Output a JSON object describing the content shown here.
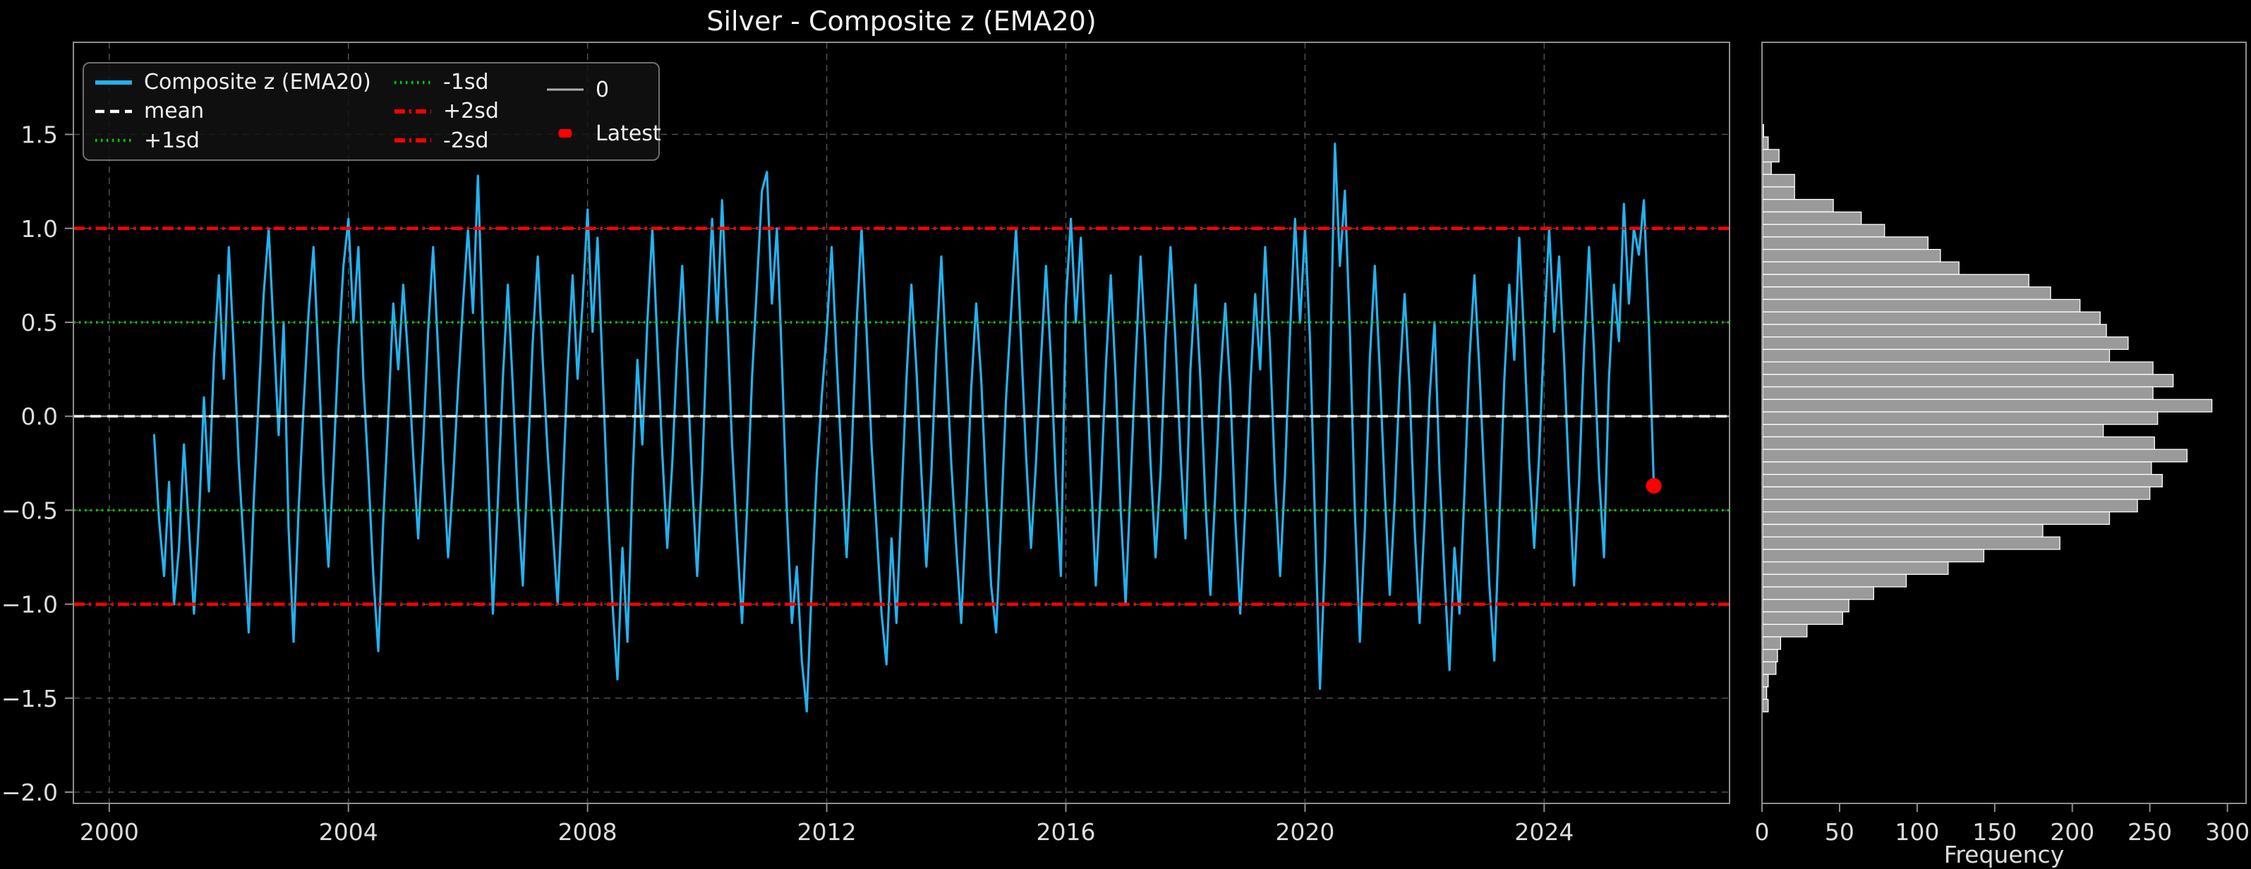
{
  "title": "Silver - Composite z (EMA20)",
  "colors": {
    "background": "#000000",
    "series_line": "#23b2ef",
    "mean_line": "#ffffff",
    "sd1_line": "#00c800",
    "sd2_line": "#ff0000",
    "zero_line": "#b0b0b0",
    "latest_marker": "#ff0000",
    "hist_bar": "#9a9a9a",
    "hist_bar_edge": "#ffffff",
    "grid": "#4f4f4f",
    "spine": "#8f8f8f",
    "text": "#dcdcdc"
  },
  "legend": {
    "entries": [
      {
        "label": "Composite z (EMA20)",
        "style": "solid",
        "color": "#23b2ef",
        "sample_width": 6
      },
      {
        "label": "mean",
        "style": "dashed",
        "color": "#ffffff",
        "sample_width": 4.5
      },
      {
        "label": "+1sd",
        "style": "dotted",
        "color": "#00c800",
        "sample_width": 4.5
      },
      {
        "label": "-1sd",
        "style": "dotted",
        "color": "#00c800",
        "sample_width": 4.5
      },
      {
        "label": "+2sd",
        "style": "dashdot",
        "color": "#ff0000",
        "sample_width": 6
      },
      {
        "label": "-2sd",
        "style": "dashdot",
        "color": "#ff0000",
        "sample_width": 6
      },
      {
        "label": "0",
        "style": "solid",
        "color": "#b0b0b0",
        "sample_width": 3
      },
      {
        "label": "Latest",
        "style": "marker",
        "color": "#ff0000",
        "sample_width": 0
      }
    ]
  },
  "chart_data": [
    {
      "type": "line",
      "title": "Silver - Composite z (EMA20)",
      "xlabel": "",
      "ylabel": "",
      "xlim": [
        1999.4,
        2027.1
      ],
      "ylim": [
        -2.06,
        1.99
      ],
      "xticks": [
        2000,
        2004,
        2008,
        2012,
        2016,
        2020,
        2024
      ],
      "yticks": [
        1.5,
        1.0,
        0.5,
        0.0,
        -0.5,
        -1.0,
        -1.5,
        -2.0
      ],
      "grid": true,
      "legend_position": "upper left",
      "series": [
        {
          "name": "Composite z (EMA20)",
          "color": "#23b2ef",
          "x_start": 2000.75,
          "x_step": 0.0833333,
          "y": [
            -0.1,
            -0.55,
            -0.85,
            -0.35,
            -1.0,
            -0.7,
            -0.15,
            -0.6,
            -1.05,
            -0.55,
            0.1,
            -0.4,
            0.3,
            0.75,
            0.2,
            0.9,
            0.35,
            -0.25,
            -0.7,
            -1.15,
            -0.45,
            0.1,
            0.65,
            1.0,
            0.45,
            -0.1,
            0.5,
            -0.6,
            -1.2,
            -0.5,
            0.05,
            0.55,
            0.9,
            0.3,
            -0.35,
            -0.8,
            -0.25,
            0.35,
            0.8,
            1.05,
            0.5,
            0.9,
            0.2,
            -0.3,
            -0.85,
            -1.25,
            -0.55,
            0.0,
            0.6,
            0.25,
            0.7,
            0.3,
            -0.2,
            -0.65,
            -0.15,
            0.45,
            0.9,
            0.35,
            -0.25,
            -0.75,
            -0.35,
            0.15,
            0.6,
            1.0,
            0.55,
            1.28,
            0.45,
            -0.3,
            -1.05,
            -0.45,
            0.2,
            0.7,
            0.15,
            -0.45,
            -0.9,
            -0.25,
            0.4,
            0.85,
            0.3,
            -0.2,
            -0.6,
            -1.0,
            -0.4,
            0.25,
            0.75,
            0.2,
            0.6,
            1.1,
            0.45,
            0.95,
            0.25,
            -0.45,
            -1.0,
            -1.4,
            -0.7,
            -1.2,
            -0.35,
            0.3,
            -0.15,
            0.5,
            1.0,
            0.4,
            -0.2,
            -0.7,
            -0.25,
            0.35,
            0.8,
            0.25,
            -0.35,
            -0.85,
            -0.3,
            0.45,
            1.05,
            0.5,
            1.15,
            0.55,
            -0.15,
            -0.65,
            -1.1,
            -0.5,
            0.2,
            0.7,
            1.2,
            1.3,
            0.6,
            1.0,
            0.3,
            -0.5,
            -1.1,
            -0.8,
            -1.3,
            -1.57,
            -0.9,
            -0.3,
            0.1,
            0.45,
            0.9,
            0.3,
            -0.25,
            -0.75,
            -0.2,
            0.5,
            1.0,
            0.45,
            -0.15,
            -0.6,
            -1.05,
            -1.32,
            -0.65,
            -1.1,
            -0.45,
            0.2,
            0.7,
            0.25,
            -0.3,
            -0.8,
            -0.3,
            0.35,
            0.85,
            0.3,
            -0.25,
            -0.7,
            -1.1,
            -0.5,
            0.15,
            0.6,
            0.2,
            -0.4,
            -0.9,
            -1.15,
            -0.55,
            0.1,
            0.55,
            1.0,
            0.4,
            -0.2,
            -0.7,
            -0.25,
            0.3,
            0.8,
            0.3,
            -0.35,
            -0.85,
            0.6,
            1.05,
            0.5,
            0.95,
            0.35,
            -0.3,
            -0.9,
            -0.4,
            0.25,
            0.75,
            0.2,
            -0.5,
            -1.0,
            -0.35,
            0.3,
            0.85,
            0.35,
            -0.25,
            -0.75,
            -0.3,
            0.4,
            0.9,
            0.4,
            -0.2,
            -0.65,
            0.25,
            0.7,
            0.2,
            -0.45,
            -0.95,
            -0.4,
            0.2,
            0.6,
            0.15,
            -0.55,
            -1.05,
            -0.5,
            0.15,
            0.65,
            0.25,
            0.9,
            0.35,
            -0.35,
            -0.85,
            -0.3,
            0.45,
            1.05,
            0.5,
            1.0,
            0.4,
            -0.55,
            -1.45,
            -0.75,
            0.2,
            1.45,
            0.8,
            1.2,
            0.45,
            -0.5,
            -1.2,
            -0.6,
            0.3,
            0.8,
            0.25,
            -0.4,
            -0.95,
            -0.45,
            0.2,
            0.65,
            0.15,
            -0.6,
            -1.1,
            -0.55,
            0.1,
            0.5,
            -0.3,
            -0.85,
            -1.35,
            -0.7,
            -1.05,
            -0.4,
            0.3,
            0.75,
            0.25,
            -0.35,
            -0.9,
            -1.3,
            -0.55,
            0.2,
            0.7,
            0.3,
            0.95,
            0.4,
            -0.25,
            -0.7,
            -0.2,
            0.45,
            1.0,
            0.45,
            0.85,
            0.3,
            -0.35,
            -0.9,
            -0.35,
            0.35,
            0.9,
            0.35,
            -0.3,
            -0.75,
            0.2,
            0.7,
            0.4,
            1.13,
            0.6,
            1.0,
            0.86,
            1.15,
            0.5,
            -0.37
          ]
        }
      ],
      "reference_lines": [
        {
          "name": "0",
          "value": 0.0,
          "style": "solid",
          "color": "#b0b0b0",
          "width": 2.5
        },
        {
          "name": "+1sd",
          "value": 0.5,
          "style": "dotted",
          "color": "#00c800",
          "width": 3.5
        },
        {
          "name": "-1sd",
          "value": -0.5,
          "style": "dotted",
          "color": "#00c800",
          "width": 3.5
        },
        {
          "name": "+2sd",
          "value": 1.0,
          "style": "dashdot",
          "color": "#ff0000",
          "width": 4.5
        },
        {
          "name": "-2sd",
          "value": -1.0,
          "style": "dashdot",
          "color": "#ff0000",
          "width": 4.5
        },
        {
          "name": "mean",
          "value": 0.0,
          "style": "dashed",
          "color": "#ffffff",
          "width": 3.5
        }
      ],
      "latest_point": {
        "x": 2025.833,
        "y": -0.37,
        "color": "#ff0000",
        "label": "Latest"
      }
    },
    {
      "type": "bar",
      "orientation": "horizontal",
      "xlabel": "Frequency",
      "xlim": [
        0,
        312
      ],
      "xticks": [
        0,
        50,
        100,
        150,
        200,
        250,
        300
      ],
      "bin_top": 1.553,
      "bin_bottom": -1.573,
      "counts": [
        1,
        4,
        11,
        6,
        21,
        21,
        46,
        64,
        79,
        107,
        115,
        127,
        172,
        186,
        205,
        218,
        222,
        236,
        224,
        252,
        265,
        252,
        290,
        255,
        220,
        253,
        274,
        251,
        258,
        250,
        242,
        224,
        181,
        192,
        143,
        120,
        93,
        72,
        56,
        52,
        29,
        12,
        10,
        9,
        4,
        3,
        4
      ],
      "bar_color": "#9a9a9a",
      "bar_edge": "#ffffff"
    }
  ]
}
